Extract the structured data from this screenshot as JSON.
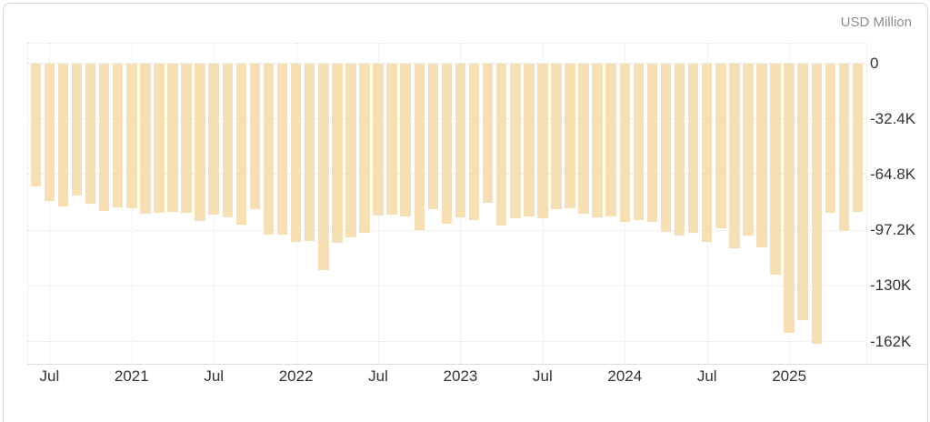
{
  "header": {
    "unit_label": "USD Million"
  },
  "colors": {
    "bar": "#f5dfb3",
    "grid": "#e3e3e3",
    "axis_text": "#333333",
    "unit_text": "#8d8d8d",
    "card_border": "#d8d8d8",
    "baseline": "#dcdcdc",
    "background": "#ffffff"
  },
  "chart_data": {
    "type": "bar",
    "title": "",
    "xlabel": "",
    "ylabel": "USD Million",
    "legend": "none",
    "grid": "on",
    "ylim": [
      -175200,
      11600
    ],
    "x": [
      "Jun 2020",
      "Jul 2020",
      "Aug 2020",
      "Sep 2020",
      "Oct 2020",
      "Nov 2020",
      "Dec 2020",
      "Jan 2021",
      "Feb 2021",
      "Mar 2021",
      "Apr 2021",
      "May 2021",
      "Jun 2021",
      "Jul 2021",
      "Aug 2021",
      "Sep 2021",
      "Oct 2021",
      "Nov 2021",
      "Dec 2021",
      "Jan 2022",
      "Feb 2022",
      "Mar 2022",
      "Apr 2022",
      "May 2022",
      "Jun 2022",
      "Jul 2022",
      "Aug 2022",
      "Sep 2022",
      "Oct 2022",
      "Nov 2022",
      "Dec 2022",
      "Jan 2023",
      "Feb 2023",
      "Mar 2023",
      "Apr 2023",
      "May 2023",
      "Jun 2023",
      "Jul 2023",
      "Aug 2023",
      "Sep 2023",
      "Oct 2023",
      "Nov 2023",
      "Dec 2023",
      "Jan 2024",
      "Feb 2024",
      "Mar 2024",
      "Apr 2024",
      "May 2024",
      "Jun 2024",
      "Jul 2024",
      "Aug 2024",
      "Sep 2024",
      "Oct 2024",
      "Nov 2024",
      "Dec 2024",
      "Jan 2025",
      "Feb 2025",
      "Mar 2025",
      "Apr 2025",
      "May 2025",
      "Jun 2025"
    ],
    "values": [
      -72000,
      -80500,
      -83600,
      -77300,
      -82100,
      -86100,
      -84300,
      -84900,
      -87900,
      -87500,
      -86600,
      -87300,
      -92300,
      -88200,
      -90200,
      -94100,
      -85200,
      -99900,
      -99900,
      -104300,
      -103800,
      -120900,
      -104600,
      -101600,
      -99000,
      -88800,
      -88200,
      -89600,
      -97600,
      -85200,
      -93700,
      -90200,
      -91800,
      -81700,
      -94600,
      -90500,
      -89600,
      -90500,
      -85200,
      -84900,
      -87900,
      -90200,
      -89300,
      -92800,
      -91800,
      -92800,
      -98500,
      -100600,
      -98900,
      -104400,
      -96400,
      -107800,
      -100600,
      -107600,
      -123500,
      -157100,
      -149700,
      -163400,
      -87300,
      -97900,
      -87000
    ],
    "y_ticks": [
      {
        "label": "0",
        "value": 0
      },
      {
        "label": "-32.4K",
        "value": -32400
      },
      {
        "label": "-64.8K",
        "value": -64800
      },
      {
        "label": "-97.2K",
        "value": -97200
      },
      {
        "label": "-130K",
        "value": -129600
      },
      {
        "label": "-162K",
        "value": -162000
      }
    ],
    "x_ticks": [
      {
        "label": "Jul",
        "month_index": 1
      },
      {
        "label": "2021",
        "month_index": 7
      },
      {
        "label": "Jul",
        "month_index": 13
      },
      {
        "label": "2022",
        "month_index": 19
      },
      {
        "label": "Jul",
        "month_index": 25
      },
      {
        "label": "2023",
        "month_index": 31
      },
      {
        "label": "Jul",
        "month_index": 37
      },
      {
        "label": "2024",
        "month_index": 43
      },
      {
        "label": "Jul",
        "month_index": 49
      },
      {
        "label": "2025",
        "month_index": 55
      }
    ]
  }
}
